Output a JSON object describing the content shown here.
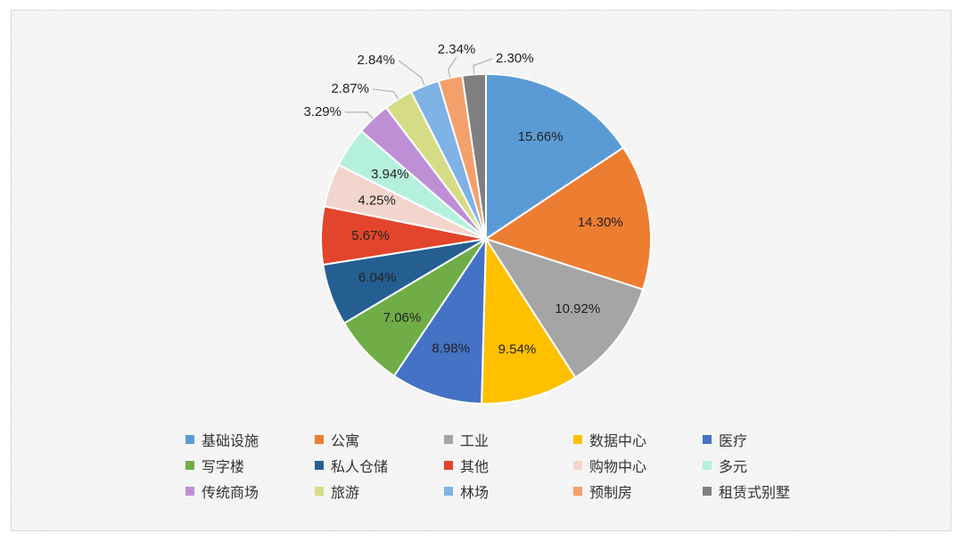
{
  "chart_data": {
    "type": "pie",
    "start_angle_deg": 0,
    "direction": "clockwise",
    "legend_position": "bottom",
    "slices": [
      {
        "name": "基础设施",
        "value": 15.66,
        "label": "15.66%",
        "color": "#5B9BD5"
      },
      {
        "name": "公寓",
        "value": 14.3,
        "label": "14.30%",
        "color": "#ED7D31"
      },
      {
        "name": "工业",
        "value": 10.92,
        "label": "10.92%",
        "color": "#A5A5A5"
      },
      {
        "name": "数据中心",
        "value": 9.54,
        "label": "9.54%",
        "color": "#FFC000"
      },
      {
        "name": "医疗",
        "value": 8.98,
        "label": "8.98%",
        "color": "#4472C4"
      },
      {
        "name": "写字楼",
        "value": 7.06,
        "label": "7.06%",
        "color": "#70AD47"
      },
      {
        "name": "私人仓储",
        "value": 6.04,
        "label": "6.04%",
        "color": "#255E91"
      },
      {
        "name": "其他",
        "value": 5.67,
        "label": "5.67%",
        "color": "#E2452B"
      },
      {
        "name": "购物中心",
        "value": 4.25,
        "label": "4.25%",
        "color": "#F2D6CD"
      },
      {
        "name": "多元",
        "value": 3.94,
        "label": "3.94%",
        "color": "#B5F0DE"
      },
      {
        "name": "传统商场",
        "value": 3.29,
        "label": "3.29%",
        "color": "#BF8FD6"
      },
      {
        "name": "旅游",
        "value": 2.87,
        "label": "2.87%",
        "color": "#D6DC86"
      },
      {
        "name": "林场",
        "value": 2.84,
        "label": "2.84%",
        "color": "#7FB2E5"
      },
      {
        "name": "预制房",
        "value": 2.34,
        "label": "2.34%",
        "color": "#F4A06A"
      },
      {
        "name": "租赁式别墅",
        "value": 2.3,
        "label": "2.30%",
        "color": "#7F7F7F"
      }
    ]
  }
}
